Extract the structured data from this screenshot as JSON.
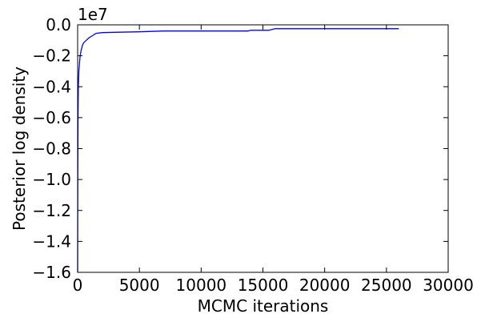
{
  "chart_data": {
    "type": "line",
    "title": "",
    "xlabel": "MCMC iterations",
    "ylabel": "Posterior log density",
    "y_offset_text": {
      "base": "1e",
      "exponent": "7"
    },
    "xlim": [
      0,
      30000
    ],
    "ylim": [
      -1.6,
      0.0
    ],
    "y_unit_multiplier": 10000000,
    "x_ticks": [
      0,
      5000,
      10000,
      15000,
      20000,
      25000,
      30000
    ],
    "x_tick_labels": [
      "0",
      "5000",
      "10000",
      "15000",
      "20000",
      "25000",
      "30000"
    ],
    "y_ticks": [
      0.0,
      -0.2,
      -0.4,
      -0.6,
      -0.8,
      -1.0,
      -1.2,
      -1.4,
      -1.6
    ],
    "y_tick_labels": [
      "0.0",
      "−0.2",
      "−0.4",
      "−0.6",
      "−0.8",
      "−1.0",
      "−1.2",
      "−1.4",
      "−1.6"
    ],
    "grid": false,
    "series": [
      {
        "color": "#0000ff",
        "x": [
          0,
          10,
          30,
          60,
          100,
          150,
          200,
          300,
          400,
          500,
          700,
          900,
          1200,
          1500,
          2000,
          3000,
          5000,
          7000,
          10000,
          13800,
          14000,
          15500,
          16000,
          20000,
          26000
        ],
        "y": [
          -1.6,
          -1.0,
          -0.6,
          -0.4,
          -0.3,
          -0.25,
          -0.2,
          -0.16,
          -0.13,
          -0.115,
          -0.1,
          -0.085,
          -0.07,
          -0.055,
          -0.05,
          -0.048,
          -0.045,
          -0.04,
          -0.04,
          -0.04,
          -0.035,
          -0.035,
          -0.025,
          -0.025,
          -0.025
        ]
      }
    ]
  }
}
